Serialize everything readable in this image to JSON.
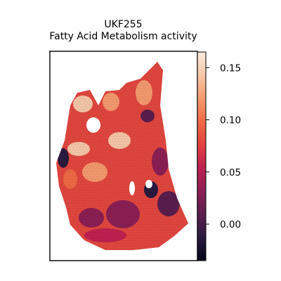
{
  "chart_data": {
    "type": "heatmap",
    "title": "UKF255",
    "subtitle": "Fatty Acid Metabolism activity",
    "xlabel": "",
    "ylabel": "",
    "colormap": "rocket",
    "colorbar": {
      "vmin": -0.035,
      "vmax": 0.165,
      "ticks": [
        0.0,
        0.05,
        0.1,
        0.15
      ],
      "tick_labels": [
        "0.00",
        "0.05",
        "0.10",
        "0.15"
      ]
    },
    "colormap_stops": [
      "#03051a",
      "#2b1a3f",
      "#5a1e4e",
      "#8c1f55",
      "#bf2151",
      "#e4413e",
      "#f06a45",
      "#f59a6e",
      "#f7c7a8",
      "#faebdd"
    ],
    "grid": false,
    "legend": "colorbar-right"
  }
}
